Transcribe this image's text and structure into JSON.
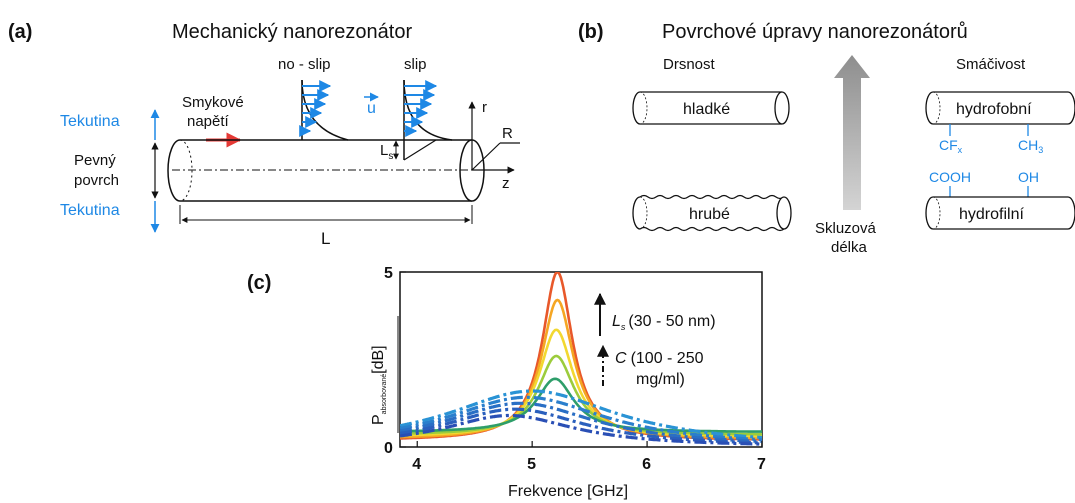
{
  "panel_a": {
    "label": "(a)",
    "title": "Mechanický nanorezonátor",
    "no_slip": "no - slip",
    "slip": "slip",
    "shear_line1": "Smykové",
    "shear_line2": "napětí",
    "velocity": "u",
    "fluid_top": "Tekutina",
    "fluid_bottom": "Tekutina",
    "solid_line1": "Pevný",
    "solid_line2": "povrch",
    "slip_length": "L",
    "slip_length_sub": "s",
    "radius": "R",
    "axis_r": "r",
    "axis_z": "z",
    "length": "L"
  },
  "panel_b": {
    "label": "(b)",
    "title": "Povrchové úpravy nanorezonátorů",
    "roughness": "Drsnost",
    "wettability": "Smáčivost",
    "smooth": "hladké",
    "rough": "hrubé",
    "hydrophobic": "hydrofobní",
    "hydrophilic": "hydrofilní",
    "slip_line1": "Skluzová",
    "slip_line2": "délka",
    "g_cfx": "CF",
    "g_cfx_sub": "x",
    "g_ch3": "CH",
    "g_ch3_sub": "3",
    "g_cooh": "COOH",
    "g_oh": "OH"
  },
  "panel_c": {
    "label": "(c)",
    "ylabel": "P",
    "ylabel_sub": "absorbované",
    "ylabel_unit": "[dB]",
    "xlabel": "Frekvence [GHz]",
    "legend_ls": "L",
    "legend_ls_sub": "s",
    "legend_ls_range": "(30 - 50 nm)",
    "legend_c": "C",
    "legend_c_range": "(100 - 250",
    "legend_c_unit": "mg/ml)"
  },
  "colors": {
    "fluid_blue": "#1e88e5",
    "shear_red": "#e53935",
    "arrow_gray": "#9e9e9e"
  },
  "chart_data": {
    "type": "line",
    "xlabel": "Frekvence [GHz]",
    "ylabel": "P absorbované [dB]",
    "xlim": [
      3.85,
      7.0
    ],
    "ylim": [
      0,
      5
    ],
    "x_ticks": [
      4,
      5,
      6,
      7
    ],
    "y_ticks": [
      0,
      5
    ],
    "series": [
      {
        "style": "solid",
        "color": "#e8582a",
        "center": 5.22,
        "peak": 5.0,
        "width": 0.16,
        "base": 0.18
      },
      {
        "style": "solid",
        "color": "#f5a623",
        "center": 5.22,
        "peak": 4.2,
        "width": 0.17,
        "base": 0.22
      },
      {
        "style": "solid",
        "color": "#f2d830",
        "center": 5.21,
        "peak": 3.35,
        "width": 0.18,
        "base": 0.28
      },
      {
        "style": "solid",
        "color": "#9ccc3c",
        "center": 5.21,
        "peak": 2.6,
        "width": 0.19,
        "base": 0.34
      },
      {
        "style": "solid",
        "color": "#2e9e6a",
        "center": 5.2,
        "peak": 1.95,
        "width": 0.2,
        "base": 0.42
      },
      {
        "style": "dashdot",
        "color": "#2a93d5",
        "center": 5.0,
        "peak": 1.6,
        "width": 0.9,
        "base": 0.0
      },
      {
        "style": "dashdot",
        "color": "#2a7fcd",
        "center": 4.95,
        "peak": 1.42,
        "width": 0.85,
        "base": 0.0
      },
      {
        "style": "dashdot",
        "color": "#2a6fc5",
        "center": 4.9,
        "peak": 1.25,
        "width": 0.8,
        "base": 0.0
      },
      {
        "style": "dashdot",
        "color": "#2a5fbd",
        "center": 4.85,
        "peak": 1.08,
        "width": 0.75,
        "base": 0.0
      },
      {
        "style": "dashdot",
        "color": "#2a4fb5",
        "center": 4.8,
        "peak": 0.9,
        "width": 0.7,
        "base": 0.0
      }
    ]
  }
}
